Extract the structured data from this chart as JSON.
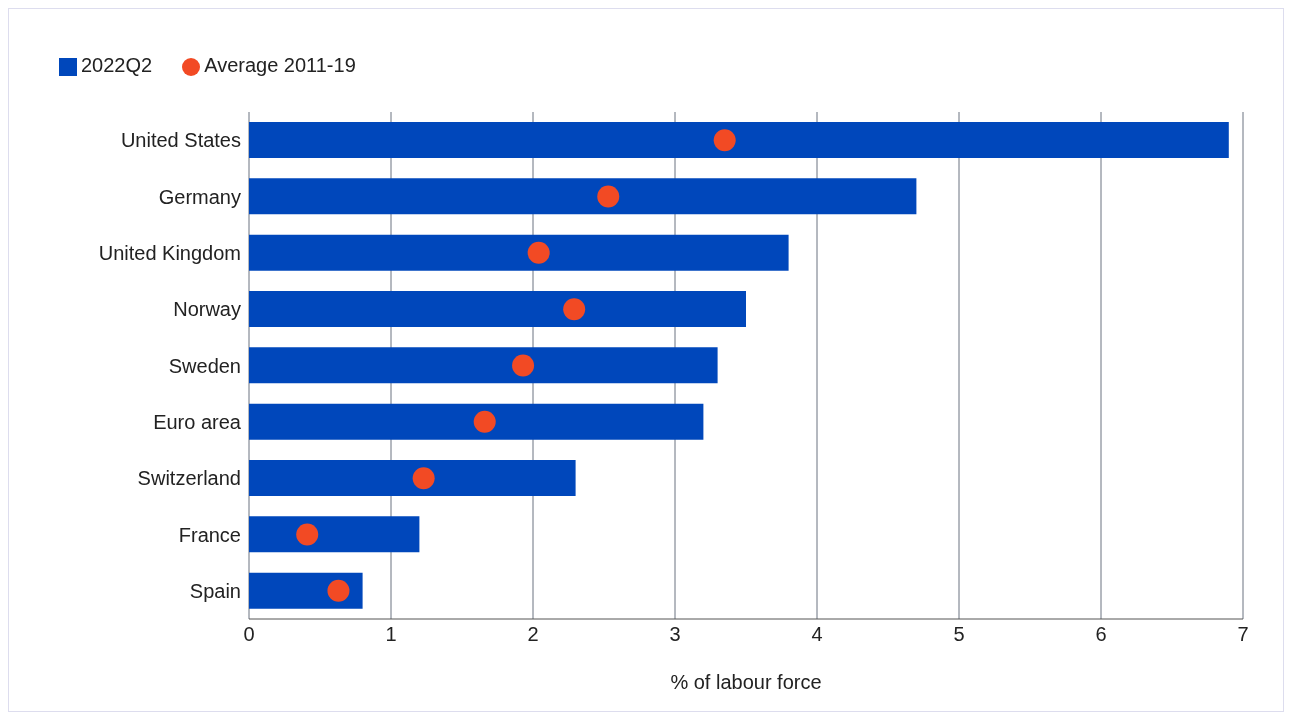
{
  "chart_data": {
    "type": "bar",
    "orientation": "horizontal",
    "xlabel": "% of labour force",
    "categories": [
      "United States",
      "Germany",
      "United Kingdom",
      "Norway",
      "Sweden",
      "Euro area",
      "Switzerland",
      "France",
      "Spain"
    ],
    "series": [
      {
        "name": "2022Q2",
        "color": "#0047bb",
        "values": [
          6.9,
          4.7,
          3.8,
          3.5,
          3.3,
          3.2,
          2.3,
          1.2,
          0.8
        ]
      },
      {
        "name": "Average 2011-19",
        "type": "scatter",
        "color": "#f24a24",
        "values": [
          3.35,
          2.53,
          2.04,
          2.29,
          1.93,
          1.66,
          1.23,
          0.41,
          0.63
        ]
      }
    ],
    "xlim": [
      0,
      7
    ],
    "xticks": [
      0,
      1,
      2,
      3,
      4,
      5,
      6,
      7
    ],
    "grid": "x",
    "legend": "top left",
    "marker": "circle"
  }
}
